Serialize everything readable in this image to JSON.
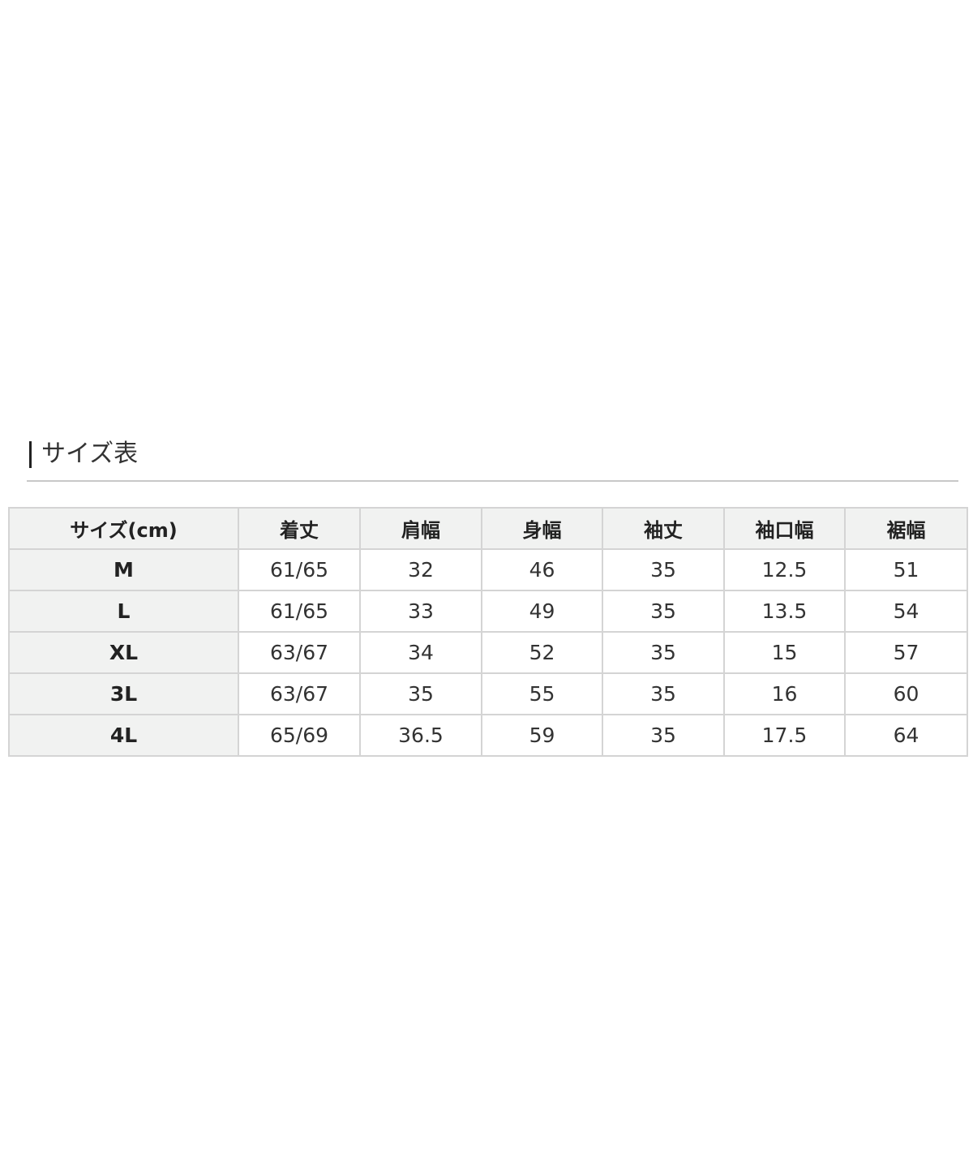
{
  "section_title": "サイズ表",
  "size_table": {
    "headers": [
      "サイズ(cm)",
      "着丈",
      "肩幅",
      "身幅",
      "袖丈",
      "袖口幅",
      "裾幅"
    ],
    "rows": [
      [
        "M",
        "61/65",
        "32",
        "46",
        "35",
        "12.5",
        "51"
      ],
      [
        "L",
        "61/65",
        "33",
        "49",
        "35",
        "13.5",
        "54"
      ],
      [
        "XL",
        "63/67",
        "34",
        "52",
        "35",
        "15",
        "57"
      ],
      [
        "3L",
        "63/67",
        "35",
        "55",
        "35",
        "16",
        "60"
      ],
      [
        "4L",
        "65/69",
        "36.5",
        "59",
        "35",
        "17.5",
        "64"
      ]
    ]
  }
}
